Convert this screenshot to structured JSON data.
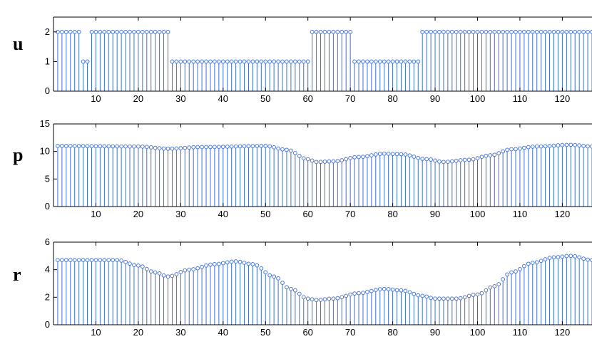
{
  "colors": {
    "stem": "#3d6fd8",
    "marker_edge": "#4a78d6",
    "marker_face": "#ffffff",
    "axes": "#000000"
  },
  "chart_data": [
    {
      "type": "stem",
      "panel_label": "u",
      "xlim": [
        0,
        127
      ],
      "ylim": [
        0,
        2.5
      ],
      "xticks": [
        10,
        20,
        30,
        40,
        50,
        60,
        70,
        80,
        90,
        100,
        110,
        120
      ],
      "yticks": [
        0,
        1,
        2
      ],
      "segments": [
        {
          "from": 1,
          "to": 6,
          "value": 2
        },
        {
          "from": 7,
          "to": 8,
          "value": 1
        },
        {
          "from": 9,
          "to": 27,
          "value": 2
        },
        {
          "from": 28,
          "to": 60,
          "value": 1
        },
        {
          "from": 61,
          "to": 70,
          "value": 2
        },
        {
          "from": 71,
          "to": 86,
          "value": 1
        },
        {
          "from": 87,
          "to": 127,
          "value": 2
        }
      ]
    },
    {
      "type": "stem",
      "panel_label": "p",
      "xlim": [
        0,
        127
      ],
      "ylim": [
        0,
        15
      ],
      "xticks": [
        10,
        20,
        30,
        40,
        50,
        60,
        70,
        80,
        90,
        100,
        110,
        120
      ],
      "yticks": [
        0,
        5,
        10,
        15
      ],
      "keypoints": [
        [
          1,
          11
        ],
        [
          20,
          10.9
        ],
        [
          27,
          10.5
        ],
        [
          35,
          10.8
        ],
        [
          50,
          11
        ],
        [
          55,
          10.3
        ],
        [
          60,
          8.6
        ],
        [
          62,
          8.1
        ],
        [
          66,
          8.2
        ],
        [
          72,
          9
        ],
        [
          78,
          9.6
        ],
        [
          82,
          9.5
        ],
        [
          88,
          8.6
        ],
        [
          92,
          8.1
        ],
        [
          98,
          8.5
        ],
        [
          103,
          9.3
        ],
        [
          108,
          10.4
        ],
        [
          114,
          10.9
        ],
        [
          122,
          11.2
        ],
        [
          127,
          10.9
        ]
      ]
    },
    {
      "type": "stem",
      "panel_label": "r",
      "xlim": [
        0,
        127
      ],
      "ylim": [
        0,
        6
      ],
      "xticks": [
        10,
        20,
        30,
        40,
        50,
        60,
        70,
        80,
        90,
        100,
        110,
        120
      ],
      "yticks": [
        0,
        2,
        4,
        6
      ],
      "keypoints": [
        [
          1,
          4.7
        ],
        [
          15,
          4.7
        ],
        [
          20,
          4.3
        ],
        [
          24,
          3.8
        ],
        [
          27,
          3.5
        ],
        [
          32,
          4
        ],
        [
          38,
          4.4
        ],
        [
          43,
          4.6
        ],
        [
          47,
          4.4
        ],
        [
          52,
          3.5
        ],
        [
          56,
          2.6
        ],
        [
          60,
          1.9
        ],
        [
          62,
          1.8
        ],
        [
          66,
          1.9
        ],
        [
          72,
          2.3
        ],
        [
          78,
          2.6
        ],
        [
          82,
          2.5
        ],
        [
          87,
          2.1
        ],
        [
          90,
          1.9
        ],
        [
          95,
          1.9
        ],
        [
          100,
          2.2
        ],
        [
          104,
          2.8
        ],
        [
          108,
          3.8
        ],
        [
          113,
          4.5
        ],
        [
          118,
          4.9
        ],
        [
          122,
          5
        ],
        [
          127,
          4.7
        ]
      ]
    }
  ]
}
